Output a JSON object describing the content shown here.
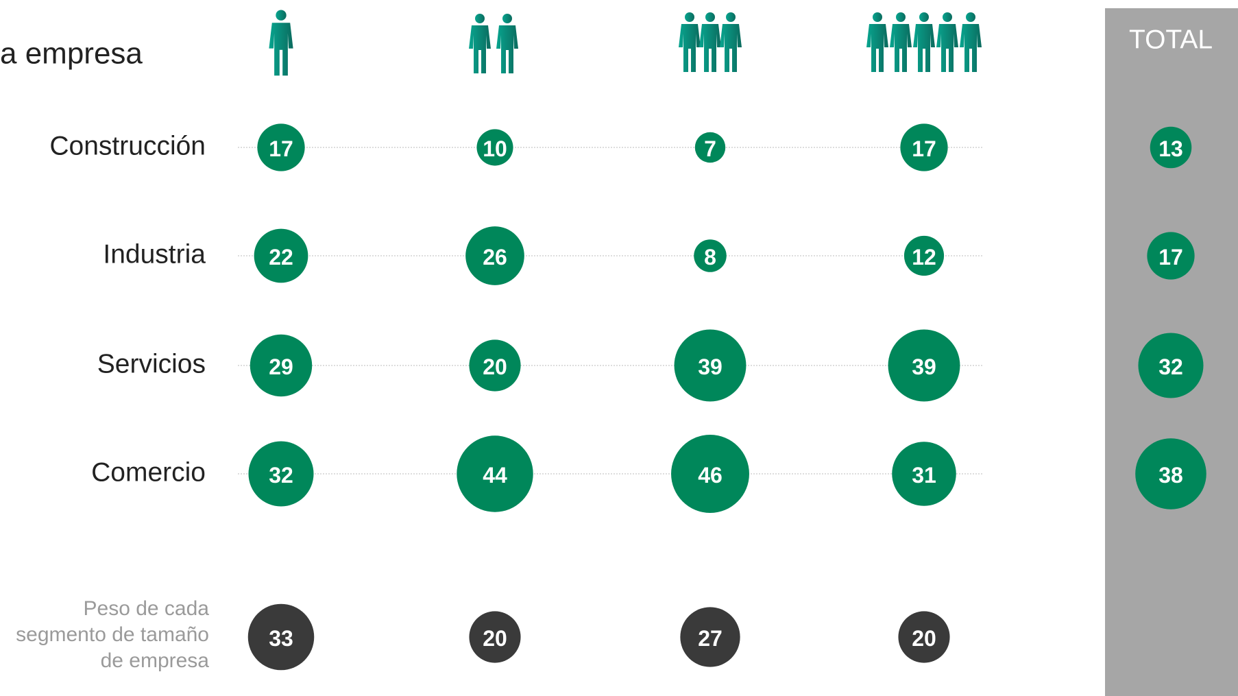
{
  "chart_data": {
    "type": "bubble",
    "title": "a empresa",
    "categories": [
      null,
      null,
      null,
      null,
      "TOTAL"
    ],
    "series": [
      {
        "name": "Construcción",
        "color": "#00875a",
        "values": [
          17,
          10,
          7,
          17,
          13
        ]
      },
      {
        "name": "Industria",
        "color": "#00875a",
        "values": [
          22,
          26,
          8,
          12,
          17
        ]
      },
      {
        "name": "Servicios",
        "color": "#00875a",
        "values": [
          29,
          20,
          39,
          39,
          32
        ]
      },
      {
        "name": "Comercio",
        "color": "#00875a",
        "values": [
          32,
          44,
          46,
          31,
          38
        ]
      },
      {
        "name": "Peso de cada segmento de tamaño de empresa",
        "color": "#3a3a3a",
        "values": [
          33,
          20,
          27,
          20,
          null
        ]
      }
    ]
  }
}
